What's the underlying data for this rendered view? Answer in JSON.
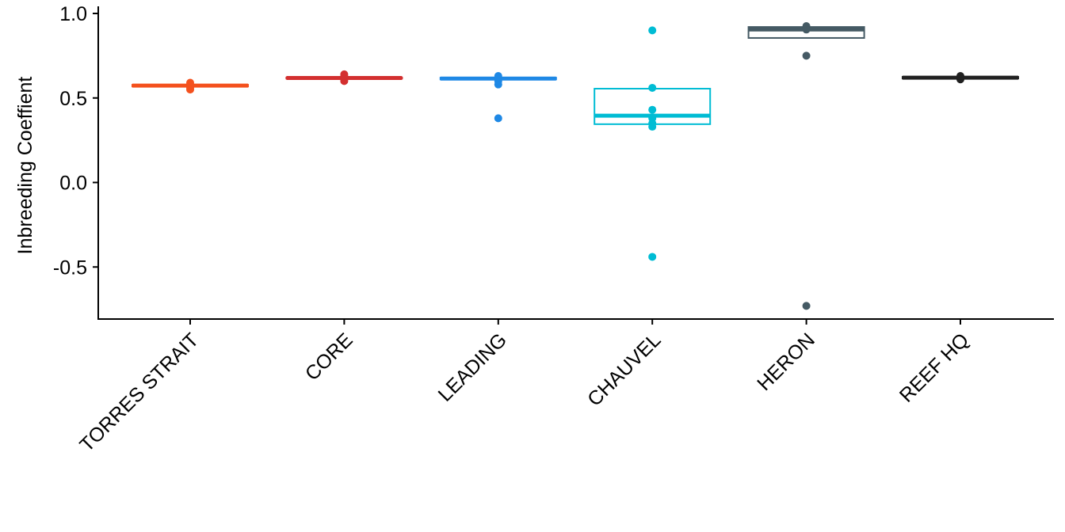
{
  "chart_data": {
    "type": "box",
    "title": "",
    "xlabel": "",
    "ylabel": "Inbreeding Coeffient",
    "ylim": [
      -0.81,
      1.0
    ],
    "yticks": [
      "1.0",
      "0.5",
      "0.0",
      "-0.5"
    ],
    "ytick_values": [
      1.0,
      0.5,
      0.0,
      -0.5
    ],
    "categories": [
      "TORRES STRAIT",
      "CORE",
      "LEADING",
      "CHAUVEL",
      "HERON",
      "REEF HQ"
    ],
    "grid": false,
    "legend": "none",
    "series": [
      {
        "category": "TORRES STRAIT",
        "color": "#F4511E",
        "q1": 0.568,
        "median": 0.573,
        "q3": 0.578,
        "points": [
          0.55,
          0.56,
          0.57,
          0.58,
          0.59
        ]
      },
      {
        "category": "CORE",
        "color": "#D32F2F",
        "q1": 0.615,
        "median": 0.618,
        "q3": 0.621,
        "points": [
          0.6,
          0.61,
          0.62,
          0.63,
          0.64
        ]
      },
      {
        "category": "LEADING",
        "color": "#1E88E5",
        "q1": 0.61,
        "median": 0.615,
        "q3": 0.62,
        "points": [
          0.63,
          0.62,
          0.6,
          0.58,
          0.38
        ]
      },
      {
        "category": "CHAUVEL",
        "color": "#00BCD4",
        "q1": 0.345,
        "median": 0.395,
        "q3": 0.555,
        "points": [
          0.9,
          0.56,
          0.43,
          0.38,
          0.35,
          0.33,
          -0.44
        ]
      },
      {
        "category": "HERON",
        "color": "#455A64",
        "q1": 0.855,
        "median": 0.905,
        "q3": 0.92,
        "points": [
          0.925,
          0.915,
          0.905,
          0.75,
          -0.73
        ]
      },
      {
        "category": "REEF HQ",
        "color": "#212121",
        "q1": 0.615,
        "median": 0.62,
        "q3": 0.625,
        "points": [
          0.61,
          0.615,
          0.62,
          0.625,
          0.63
        ]
      }
    ]
  }
}
